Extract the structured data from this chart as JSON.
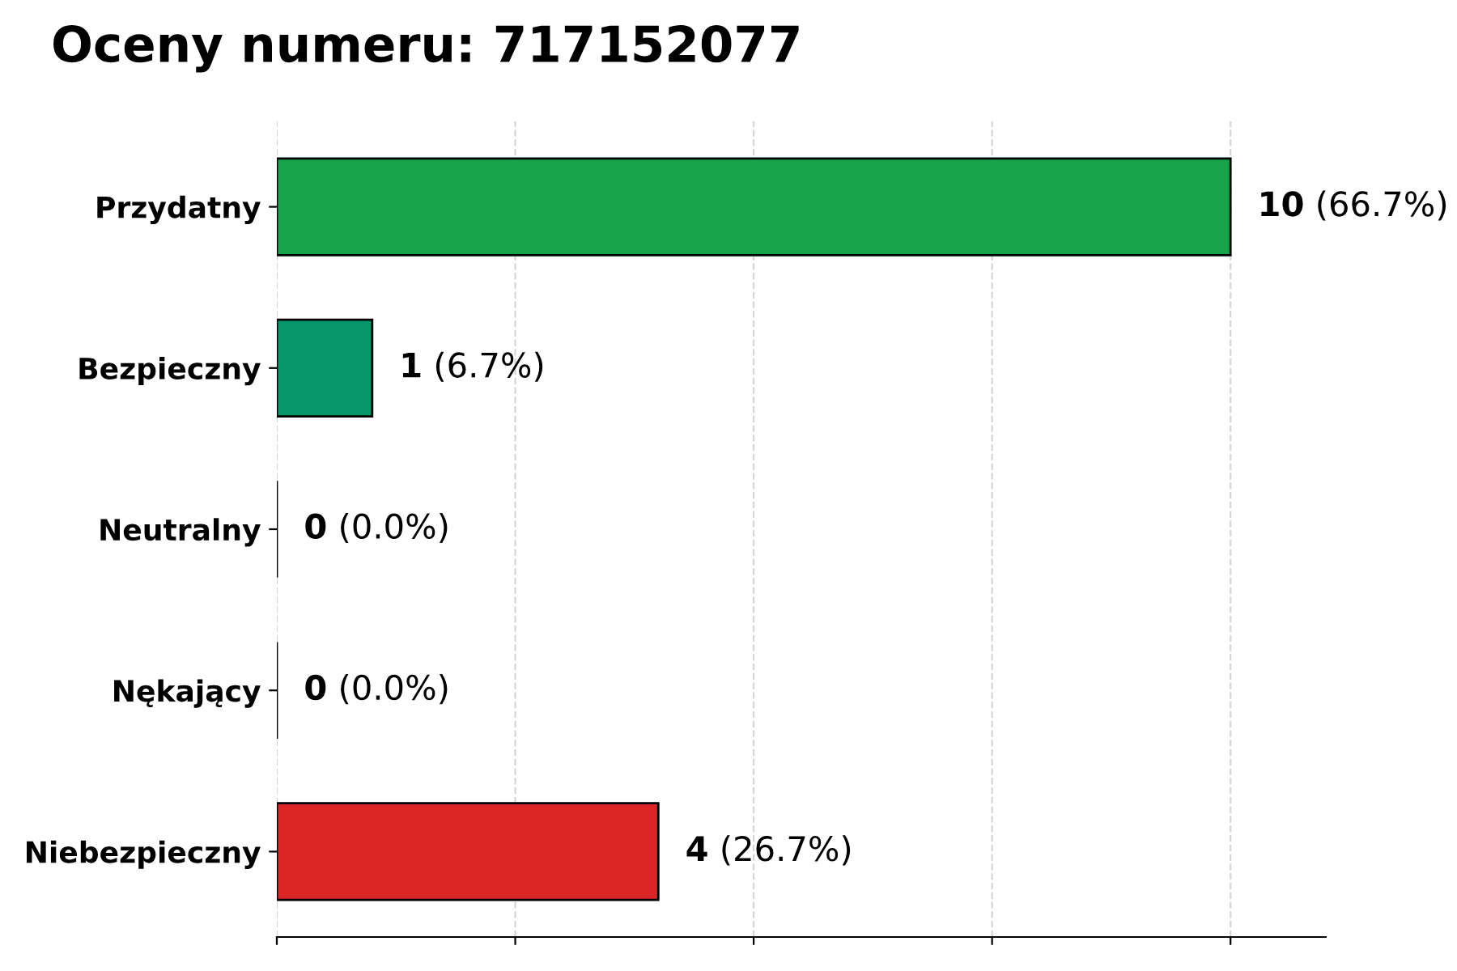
{
  "chart_data": {
    "type": "bar",
    "orientation": "horizontal",
    "title": "Oceny numeru: 717152077",
    "categories": [
      "Przydatny",
      "Bezpieczny",
      "Neutralny",
      "Nękający",
      "Niebezpieczny"
    ],
    "values": [
      10,
      1,
      0,
      0,
      4
    ],
    "colors": [
      "#16a34a",
      "#059669",
      "#000000",
      "#000000",
      "#dc2626"
    ],
    "value_labels": [
      "10 (66.7%)",
      "1 (6.7%)",
      "0 (0.0%)",
      "0 (0.0%)",
      "4 (26.7%)"
    ],
    "xlim": [
      0,
      11
    ],
    "xticks": [
      {
        "value": 0,
        "label": null
      },
      {
        "value": 2.5,
        "label": null
      },
      {
        "value": 5,
        "label": null
      },
      {
        "value": 7.5,
        "label": null
      },
      {
        "value": 10,
        "label": null
      }
    ],
    "tick_labels": "y",
    "grid": "x"
  }
}
